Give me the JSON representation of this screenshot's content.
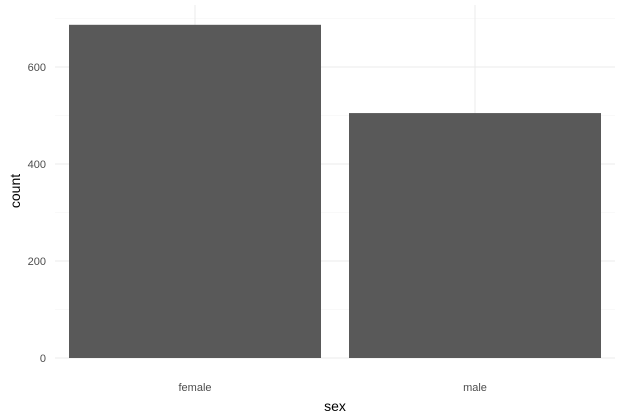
{
  "chart_data": {
    "type": "bar",
    "categories": [
      "female",
      "male"
    ],
    "values": [
      687,
      505
    ],
    "xlabel": "sex",
    "ylabel": "count",
    "ylim": [
      0,
      720
    ],
    "yticks": [
      0,
      200,
      400,
      600
    ],
    "grid": true,
    "bar_color": "#595959",
    "grid_color": "#ebebeb",
    "background": "#ffffff"
  }
}
